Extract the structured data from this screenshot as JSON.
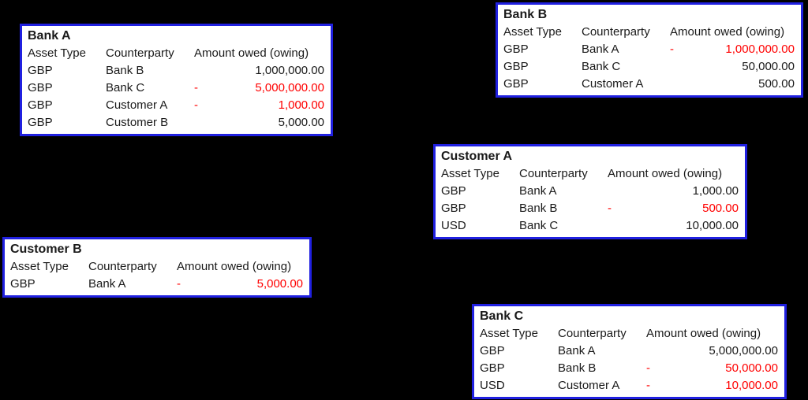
{
  "colors": {
    "page_background": "#000000",
    "table_border": "#2020e0",
    "table_background": "#ffffff",
    "text": "#1a1a1a",
    "negative": "#ff0000"
  },
  "columns": [
    "Asset Type",
    "Counterparty",
    "Amount owed (owing)"
  ],
  "tables": [
    {
      "title": "Bank A",
      "rows": [
        {
          "asset_type": "GBP",
          "counterparty": "Bank B",
          "sign": "",
          "amount": "1,000,000.00",
          "negative": false
        },
        {
          "asset_type": "GBP",
          "counterparty": "Bank C",
          "sign": "-",
          "amount": "5,000,000.00",
          "negative": true
        },
        {
          "asset_type": "GBP",
          "counterparty": "Customer A",
          "sign": "-",
          "amount": "1,000.00",
          "negative": true
        },
        {
          "asset_type": "GBP",
          "counterparty": "Customer B",
          "sign": "",
          "amount": "5,000.00",
          "negative": false
        }
      ]
    },
    {
      "title": "Bank B",
      "rows": [
        {
          "asset_type": "GBP",
          "counterparty": "Bank A",
          "sign": "-",
          "amount": "1,000,000.00",
          "negative": true
        },
        {
          "asset_type": "GBP",
          "counterparty": "Bank C",
          "sign": "",
          "amount": "50,000.00",
          "negative": false
        },
        {
          "asset_type": "GBP",
          "counterparty": "Customer A",
          "sign": "",
          "amount": "500.00",
          "negative": false
        }
      ]
    },
    {
      "title": "Customer A",
      "rows": [
        {
          "asset_type": "GBP",
          "counterparty": "Bank A",
          "sign": "",
          "amount": "1,000.00",
          "negative": false
        },
        {
          "asset_type": "GBP",
          "counterparty": "Bank B",
          "sign": "-",
          "amount": "500.00",
          "negative": true
        },
        {
          "asset_type": "USD",
          "counterparty": "Bank C",
          "sign": "",
          "amount": "10,000.00",
          "negative": false
        }
      ]
    },
    {
      "title": "Customer B",
      "rows": [
        {
          "asset_type": "GBP",
          "counterparty": "Bank A",
          "sign": "-",
          "amount": "5,000.00",
          "negative": true
        }
      ]
    },
    {
      "title": "Bank C",
      "rows": [
        {
          "asset_type": "GBP",
          "counterparty": "Bank A",
          "sign": "",
          "amount": "5,000,000.00",
          "negative": false
        },
        {
          "asset_type": "GBP",
          "counterparty": "Bank B",
          "sign": "-",
          "amount": "50,000.00",
          "negative": true
        },
        {
          "asset_type": "USD",
          "counterparty": "Customer A",
          "sign": "-",
          "amount": "10,000.00",
          "negative": true
        }
      ]
    }
  ]
}
